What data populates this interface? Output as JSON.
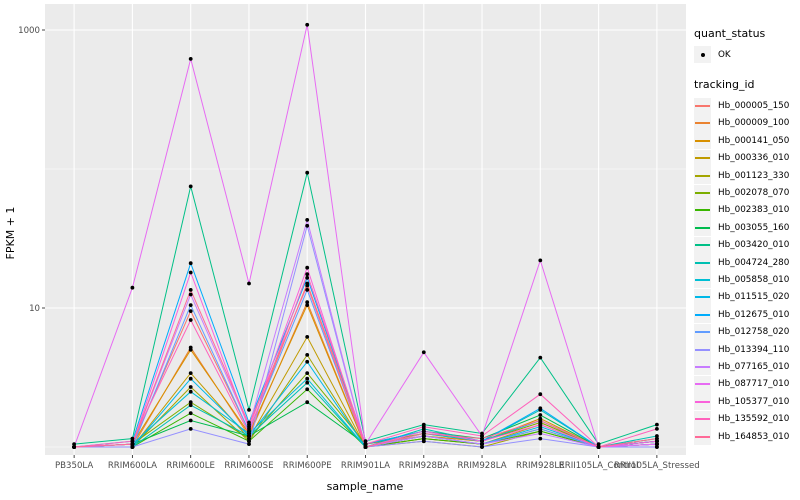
{
  "figure": {
    "panel_background": "#EBEBEB",
    "gridline_color": "#FFFFFF",
    "tick_color": "#333333",
    "axis_text_color": "#4D4D4D",
    "point_color": "#000000",
    "legend_key_fill": "#F2F2F2"
  },
  "legend": {
    "quant_status_title": "quant_status",
    "quant_status_items": [
      {
        "label": "OK",
        "marker": "black-point"
      }
    ],
    "tracking_id_title": "tracking_id"
  },
  "chart_data": {
    "type": "line",
    "title": "",
    "xlabel": "sample_name",
    "ylabel": "FPKM + 1",
    "y_scale": "log10",
    "ylim": [
      0.87,
      1300
    ],
    "grid": true,
    "legend_position": "right",
    "y_ticks": [
      {
        "value": 10,
        "label": "10"
      },
      {
        "value": 1000,
        "label": "1000"
      }
    ],
    "y_minor_gridlines": [
      1,
      100
    ],
    "x_categories": [
      "PB350LA",
      "RRIM600LA",
      "RRIM600LE",
      "RRIM600SE",
      "RRIM600PE",
      "RRIM901LA",
      "RRIM928BA",
      "RRIM928LA",
      "RRIM928LE",
      "RRII105LA_Control",
      "RRII105LA_Stressed"
    ],
    "series": [
      {
        "name": "Hb_000005_150",
        "color": "#F8766D",
        "values": [
          1,
          1.05,
          9.5,
          1.3,
          15,
          1.05,
          1.2,
          1.1,
          1.5,
          1,
          1.1
        ]
      },
      {
        "name": "Hb_000009_100",
        "color": "#EA8331",
        "values": [
          1,
          1,
          5.2,
          1.2,
          11,
          1,
          1.15,
          1.05,
          1.35,
          1,
          1.05
        ]
      },
      {
        "name": "Hb_000141_050",
        "color": "#D89000",
        "values": [
          1,
          1.05,
          5,
          1.25,
          10.5,
          1,
          1.2,
          1.1,
          1.6,
          1,
          1.1
        ]
      },
      {
        "name": "Hb_000336_010",
        "color": "#C09B00",
        "values": [
          1,
          1,
          3.4,
          1.15,
          6.2,
          1,
          1.15,
          1.05,
          1.45,
          1,
          1.05
        ]
      },
      {
        "name": "Hb_001123_330",
        "color": "#A3A500",
        "values": [
          1,
          1,
          2.7,
          1.1,
          4.6,
          1,
          1.1,
          1,
          1.3,
          1,
          1
        ]
      },
      {
        "name": "Hb_002078_070",
        "color": "#7CAE00",
        "values": [
          1,
          1.05,
          2.1,
          1.15,
          3.4,
          1.05,
          1.25,
          1.1,
          1.5,
          1,
          1.1
        ]
      },
      {
        "name": "Hb_002383_010",
        "color": "#39B600",
        "values": [
          1,
          1,
          1.75,
          1.1,
          2.6,
          1,
          1.15,
          1.05,
          1.3,
          1,
          1.05
        ]
      },
      {
        "name": "Hb_003055_160",
        "color": "#00BB4E",
        "values": [
          1,
          1.05,
          1.55,
          1.2,
          2.1,
          1.05,
          1.3,
          1.15,
          1.7,
          1,
          1.15
        ]
      },
      {
        "name": "Hb_003420_010",
        "color": "#00C087",
        "values": [
          1.05,
          1.15,
          75,
          1.85,
          94,
          1.1,
          1.45,
          1.25,
          4.4,
          1.05,
          1.45
        ]
      },
      {
        "name": "Hb_004724_280",
        "color": "#00C0B2",
        "values": [
          1,
          1,
          2,
          1.2,
          2.9,
          1,
          1.35,
          1.1,
          1.85,
          1,
          1.2
        ]
      },
      {
        "name": "Hb_005858_010",
        "color": "#00BFD4",
        "values": [
          1,
          1.05,
          2.5,
          1.25,
          3.1,
          1,
          1.25,
          1.1,
          1.55,
          1,
          1.1
        ]
      },
      {
        "name": "Hb_011515_020",
        "color": "#00B8E7",
        "values": [
          1,
          1,
          3.1,
          1.2,
          4.1,
          1,
          1.2,
          1.05,
          1.4,
          1,
          1.05
        ]
      },
      {
        "name": "Hb_012675_010",
        "color": "#00ACFC",
        "values": [
          1,
          1.1,
          21,
          1.5,
          16.5,
          1.05,
          1.3,
          1.1,
          1.9,
          1,
          1.1
        ]
      },
      {
        "name": "Hb_012758_020",
        "color": "#619CFF",
        "values": [
          1,
          1,
          10.5,
          1.3,
          13.5,
          1,
          1.2,
          1.05,
          1.35,
          1,
          1.05
        ]
      },
      {
        "name": "Hb_013394_110",
        "color": "#9590FF",
        "values": [
          1,
          1,
          1.35,
          1.05,
          39,
          1,
          1.1,
          1,
          1.15,
          1,
          1
        ]
      },
      {
        "name": "Hb_077165_010",
        "color": "#C77CFF",
        "values": [
          1,
          1.05,
          12.5,
          1.4,
          43,
          1,
          1.2,
          1.05,
          1.25,
          1,
          1.05
        ]
      },
      {
        "name": "Hb_087717_010",
        "color": "#E76BF3",
        "values": [
          1,
          14,
          620,
          15,
          1090,
          1.05,
          4.8,
          1.2,
          22,
          1,
          1.05
        ]
      },
      {
        "name": "Hb_105377_010",
        "color": "#FA62DB",
        "values": [
          1,
          1.05,
          18,
          1.35,
          19.5,
          1,
          1.3,
          1.1,
          1.45,
          1,
          1.1
        ]
      },
      {
        "name": "Hb_135592_010",
        "color": "#FF62BC",
        "values": [
          1,
          1.1,
          8.2,
          1.25,
          17.5,
          1.05,
          1.4,
          1.2,
          2.4,
          1,
          1.35
        ]
      },
      {
        "name": "Hb_164853_010",
        "color": "#FF6A98",
        "values": [
          1,
          1.05,
          13.5,
          1.45,
          14.5,
          1,
          1.25,
          1.15,
          1.55,
          1,
          1.15
        ]
      }
    ]
  }
}
